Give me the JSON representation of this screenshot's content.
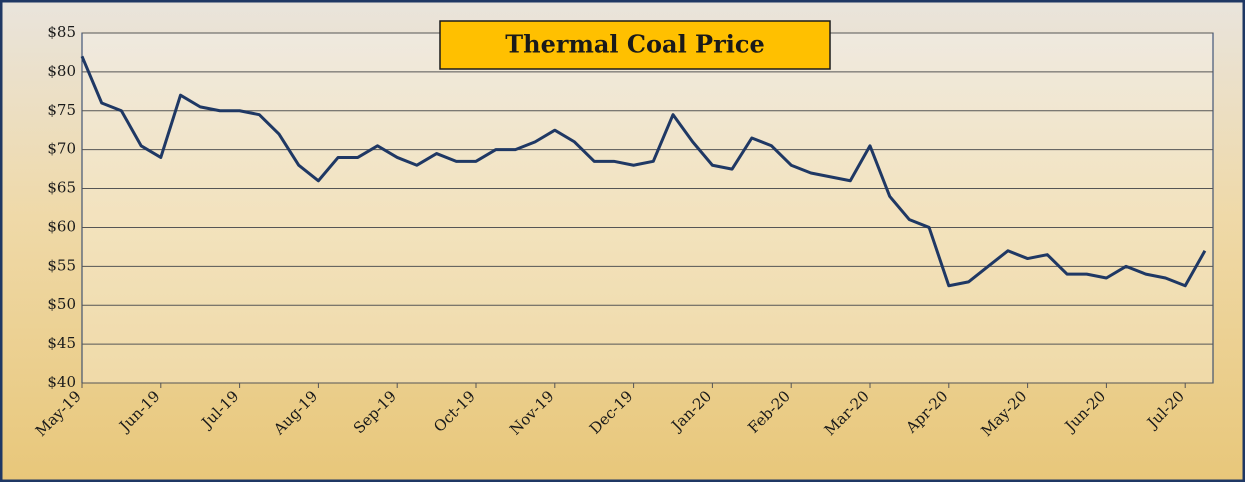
{
  "chart_data": {
    "type": "line",
    "title": "Thermal Coal Price",
    "categories": [
      "May-19",
      null,
      null,
      null,
      "Jun-19",
      null,
      null,
      null,
      "Jul-19",
      null,
      null,
      null,
      "Aug-19",
      null,
      null,
      null,
      "Sep-19",
      null,
      null,
      null,
      "Oct-19",
      null,
      null,
      null,
      "Nov-19",
      null,
      null,
      null,
      "Dec-19",
      null,
      null,
      null,
      "Jan-20",
      null,
      null,
      null,
      "Feb-20",
      null,
      null,
      null,
      "Mar-20",
      null,
      null,
      null,
      "Apr-20",
      null,
      null,
      null,
      "May-20",
      null,
      null,
      null,
      "Jun-20",
      null,
      null,
      null,
      "Jul-20",
      null
    ],
    "series": [
      {
        "name": "Thermal Coal Price",
        "color": "#1f3864",
        "values": [
          82,
          76,
          75,
          70.5,
          69,
          77,
          75.5,
          75,
          75,
          74.5,
          72,
          68,
          66,
          69,
          69,
          70.5,
          69,
          68,
          69.5,
          68.5,
          68.5,
          70,
          70,
          71,
          72.5,
          71,
          68.5,
          68.5,
          68,
          68.5,
          74.5,
          71,
          68,
          67.5,
          71.5,
          70.5,
          68,
          67,
          66.5,
          66,
          70.5,
          64,
          61,
          60,
          52.5,
          53,
          55,
          57,
          56,
          56.5,
          54,
          54,
          53.5,
          55,
          54,
          53.5,
          52.5,
          57
        ]
      }
    ],
    "ylim": [
      40,
      85
    ],
    "yticks": [
      {
        "value": 40,
        "label": "$40"
      },
      {
        "value": 45,
        "label": "$45"
      },
      {
        "value": 50,
        "label": "$50"
      },
      {
        "value": 55,
        "label": "$55"
      },
      {
        "value": 60,
        "label": "$60"
      },
      {
        "value": 65,
        "label": "$65"
      },
      {
        "value": 70,
        "label": "$70"
      },
      {
        "value": 75,
        "label": "$75"
      },
      {
        "value": 80,
        "label": "$80"
      },
      {
        "value": 85,
        "label": "$85"
      }
    ],
    "grid": true
  }
}
